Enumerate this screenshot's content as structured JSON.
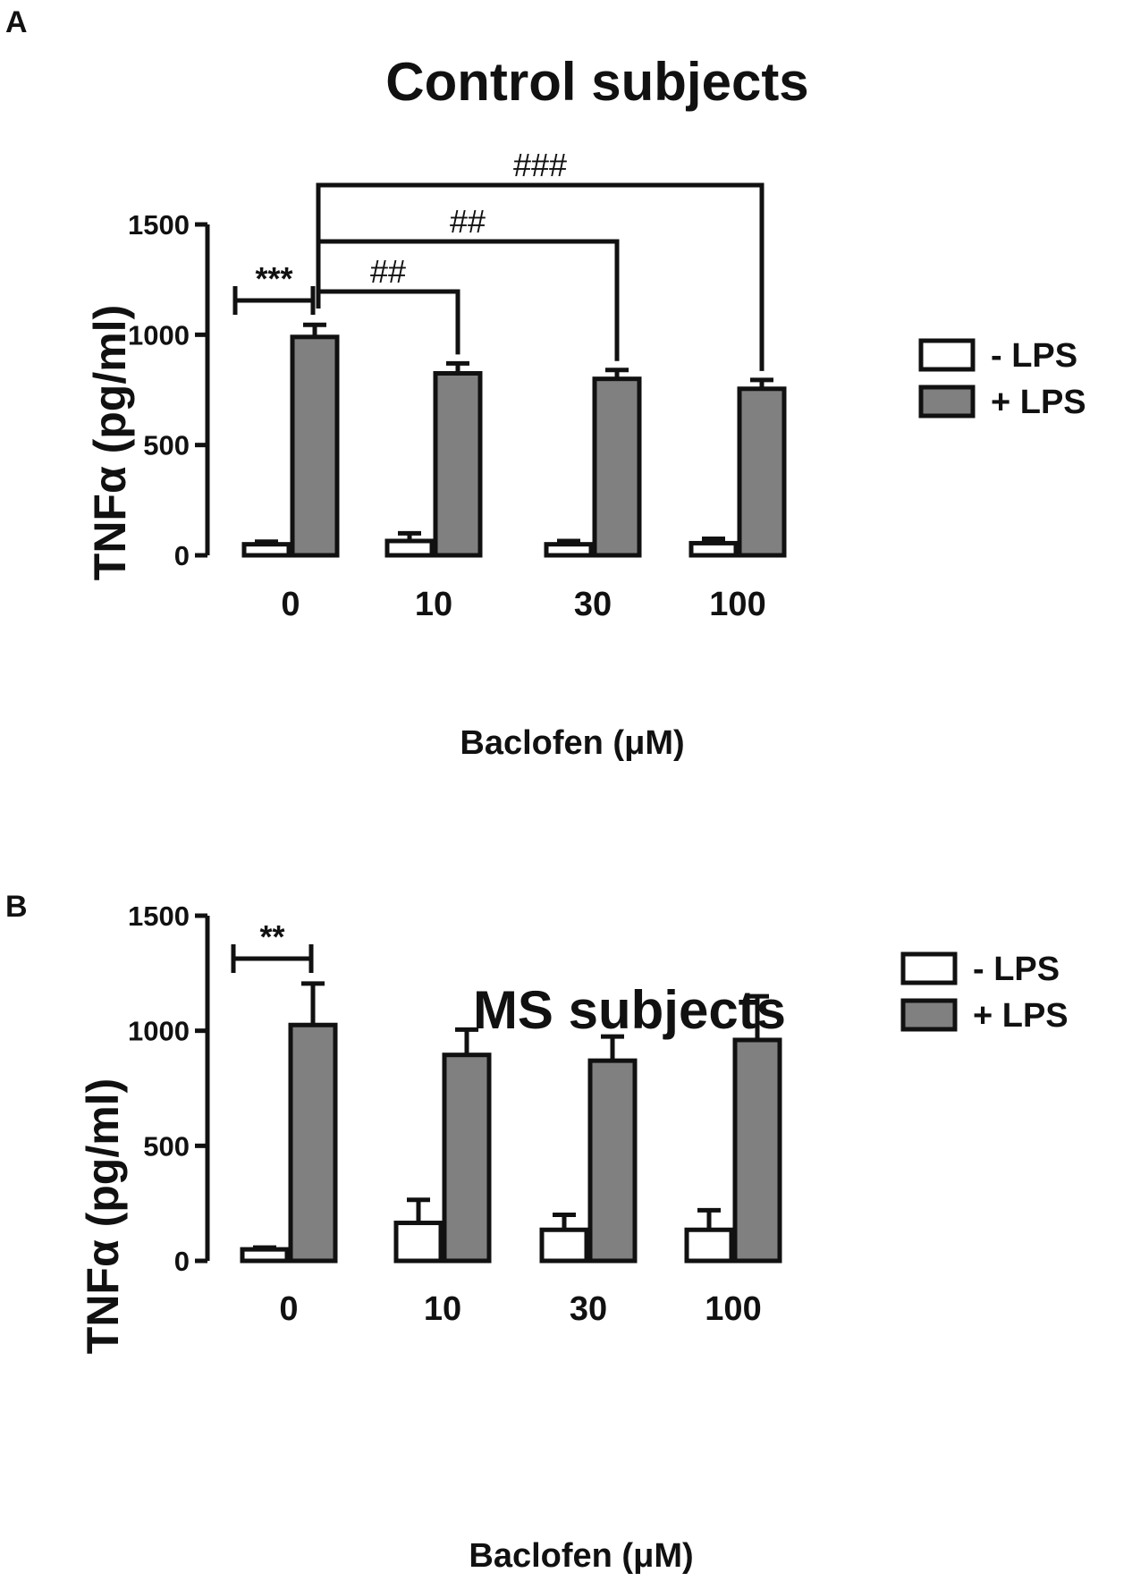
{
  "chart_data": [
    {
      "type": "bar",
      "panel": "A",
      "title": "Control subjects",
      "xlabel": "Baclofen (μM)",
      "ylabel": "TNFα (pg/ml)",
      "categories": [
        "0",
        "10",
        "30",
        "100"
      ],
      "ylim": [
        0,
        1500
      ],
      "yticks": [
        "0",
        "500",
        "1000",
        "1500"
      ],
      "series": [
        {
          "name": "- LPS",
          "color": "#ffffff",
          "values": [
            50,
            65,
            50,
            55
          ],
          "errors": [
            12,
            35,
            15,
            20
          ]
        },
        {
          "name": "+ LPS",
          "color": "#808080",
          "values": [
            990,
            825,
            800,
            755
          ],
          "errors": [
            55,
            45,
            40,
            40
          ]
        }
      ],
      "legend_position": "right",
      "annotations": [
        {
          "label": "***",
          "type": "pair",
          "category": 0
        },
        {
          "label": "##",
          "type": "bracket",
          "from": 0,
          "to": 1,
          "level": 1
        },
        {
          "label": "##",
          "type": "bracket",
          "from": 0,
          "to": 2,
          "level": 2
        },
        {
          "label": "###",
          "type": "bracket",
          "from": 0,
          "to": 3,
          "level": 3
        }
      ]
    },
    {
      "type": "bar",
      "panel": "B",
      "title": "MS subjects",
      "xlabel": "Baclofen (μM)",
      "ylabel": "TNFα (pg/ml)",
      "categories": [
        "0",
        "10",
        "30",
        "100"
      ],
      "ylim": [
        0,
        1500
      ],
      "yticks": [
        "0",
        "500",
        "1000",
        "1500"
      ],
      "series": [
        {
          "name": "- LPS",
          "color": "#ffffff",
          "values": [
            50,
            165,
            135,
            135
          ],
          "errors": [
            8,
            100,
            65,
            85
          ]
        },
        {
          "name": "+ LPS",
          "color": "#808080",
          "values": [
            1025,
            895,
            870,
            960
          ],
          "errors": [
            180,
            110,
            105,
            190
          ]
        }
      ],
      "legend_position": "right",
      "annotations": [
        {
          "label": "**",
          "type": "pair",
          "category": 0
        }
      ]
    }
  ]
}
